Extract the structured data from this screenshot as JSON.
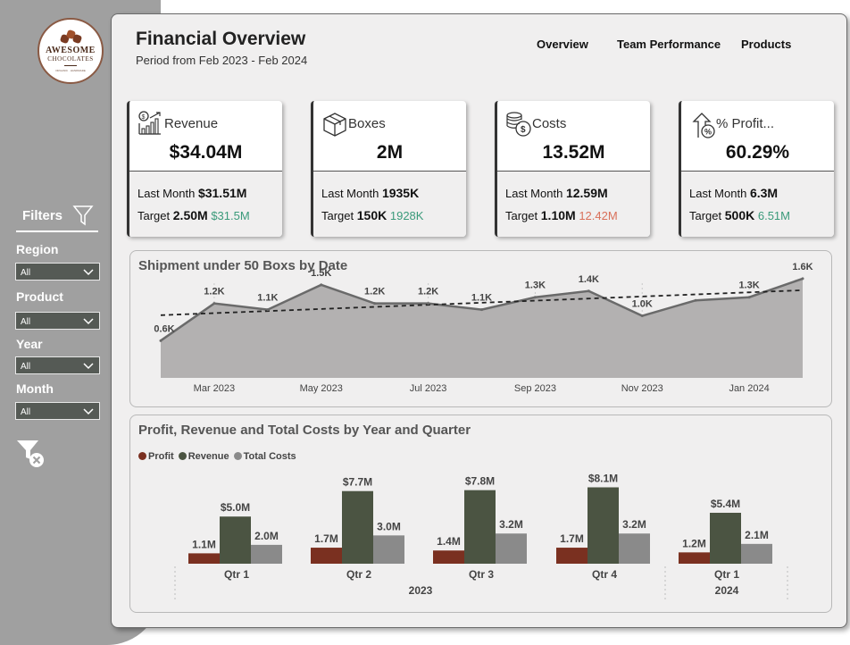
{
  "logo": {
    "line1": "AWESOME",
    "line2": "CHOCOLATES",
    "line3": "ORGANIC · HANDMADE"
  },
  "filters": {
    "title": "Filters",
    "items": [
      {
        "label": "Region",
        "value": "All"
      },
      {
        "label": "Product",
        "value": "All"
      },
      {
        "label": "Year",
        "value": "All"
      },
      {
        "label": "Month",
        "value": "All"
      }
    ]
  },
  "header": {
    "title": "Financial Overview",
    "subtitle": "Period from Feb 2023 - Feb 2024"
  },
  "nav": {
    "items": [
      "Overview",
      "Team Performance",
      "Products"
    ]
  },
  "kpis": [
    {
      "icon": "revenue-chart-icon",
      "title": "Revenue",
      "value": "$34.04M",
      "last_month_label": "Last Month",
      "last_month": "$31.51M",
      "target_label": "Target",
      "target": "2.50M",
      "actual": "$31.5M",
      "actual_color": "#3a9a7a"
    },
    {
      "icon": "box-icon",
      "title": "Boxes",
      "value": "2M",
      "last_month_label": "Last Month",
      "last_month": "1935K",
      "target_label": "Target",
      "target": "150K",
      "actual": "1928K",
      "actual_color": "#3a9a7a"
    },
    {
      "icon": "coins-icon",
      "title": "Costs",
      "value": "13.52M",
      "last_month_label": "Last Month",
      "last_month": "12.59M",
      "target_label": "Target",
      "target": "1.10M",
      "actual": "12.42M",
      "actual_color": "#d9705a"
    },
    {
      "icon": "percent-growth-icon",
      "title": "% Profit...",
      "value": "60.29%",
      "last_month_label": "Last Month",
      "last_month": "6.3M",
      "target_label": "Target",
      "target": "500K",
      "actual": "6.51M",
      "actual_color": "#3a9a7a"
    }
  ],
  "chart_data": [
    {
      "type": "area",
      "title": "Shipment under 50 Boxs by Date",
      "x": [
        "Feb 2023",
        "Mar 2023",
        "Apr 2023",
        "May 2023",
        "Jun 2023",
        "Jul 2023",
        "Aug 2023",
        "Sep 2023",
        "Oct 2023",
        "Nov 2023",
        "Dec 2023",
        "Jan 2024",
        "Feb 2024"
      ],
      "x_tick_labels": [
        "Mar 2023",
        "May 2023",
        "Jul 2023",
        "Sep 2023",
        "Nov 2023",
        "Jan 2024"
      ],
      "values": [
        600,
        1200,
        1100,
        1500,
        1200,
        1200,
        1100,
        1300,
        1400,
        1000,
        1250,
        1300,
        1600
      ],
      "data_labels": [
        "0.6K",
        "1.2K",
        "1.1K",
        "1.5K",
        "1.2K",
        "1.2K",
        "1.1K",
        "1.3K",
        "1.4K",
        "1.0K",
        "",
        "1.3K",
        "1.6K"
      ],
      "trendline": true,
      "ylim": [
        0,
        1800
      ],
      "colors": {
        "area": "#b3b1b1",
        "line": "#6a6a6a",
        "trend": "#222222"
      }
    },
    {
      "type": "bar",
      "title": "Profit, Revenue and Total Costs by Year and Quarter",
      "categories": [
        "Qtr 1",
        "Qtr 2",
        "Qtr 3",
        "Qtr 4",
        "Qtr 1"
      ],
      "groups": [
        {
          "label": "2023",
          "span": [
            0,
            3
          ]
        },
        {
          "label": "2024",
          "span": [
            4,
            4
          ]
        }
      ],
      "series": [
        {
          "name": "Profit",
          "color": "#7a3020",
          "values": [
            1.1,
            1.7,
            1.4,
            1.7,
            1.2
          ],
          "labels": [
            "1.1M",
            "1.7M",
            "1.4M",
            "1.7M",
            "1.2M"
          ]
        },
        {
          "name": "Revenue",
          "color": "#4b5442",
          "values": [
            5.0,
            7.7,
            7.8,
            8.1,
            5.4
          ],
          "labels": [
            "$5.0M",
            "$7.7M",
            "$7.8M",
            "$8.1M",
            "$5.4M"
          ]
        },
        {
          "name": "Total Costs",
          "color": "#8a8a8a",
          "values": [
            2.0,
            3.0,
            3.2,
            3.2,
            2.1
          ],
          "labels": [
            "2.0M",
            "3.0M",
            "3.2M",
            "3.2M",
            "2.1M"
          ]
        }
      ],
      "legend": "top-left",
      "ylim": [
        0,
        9
      ]
    }
  ]
}
